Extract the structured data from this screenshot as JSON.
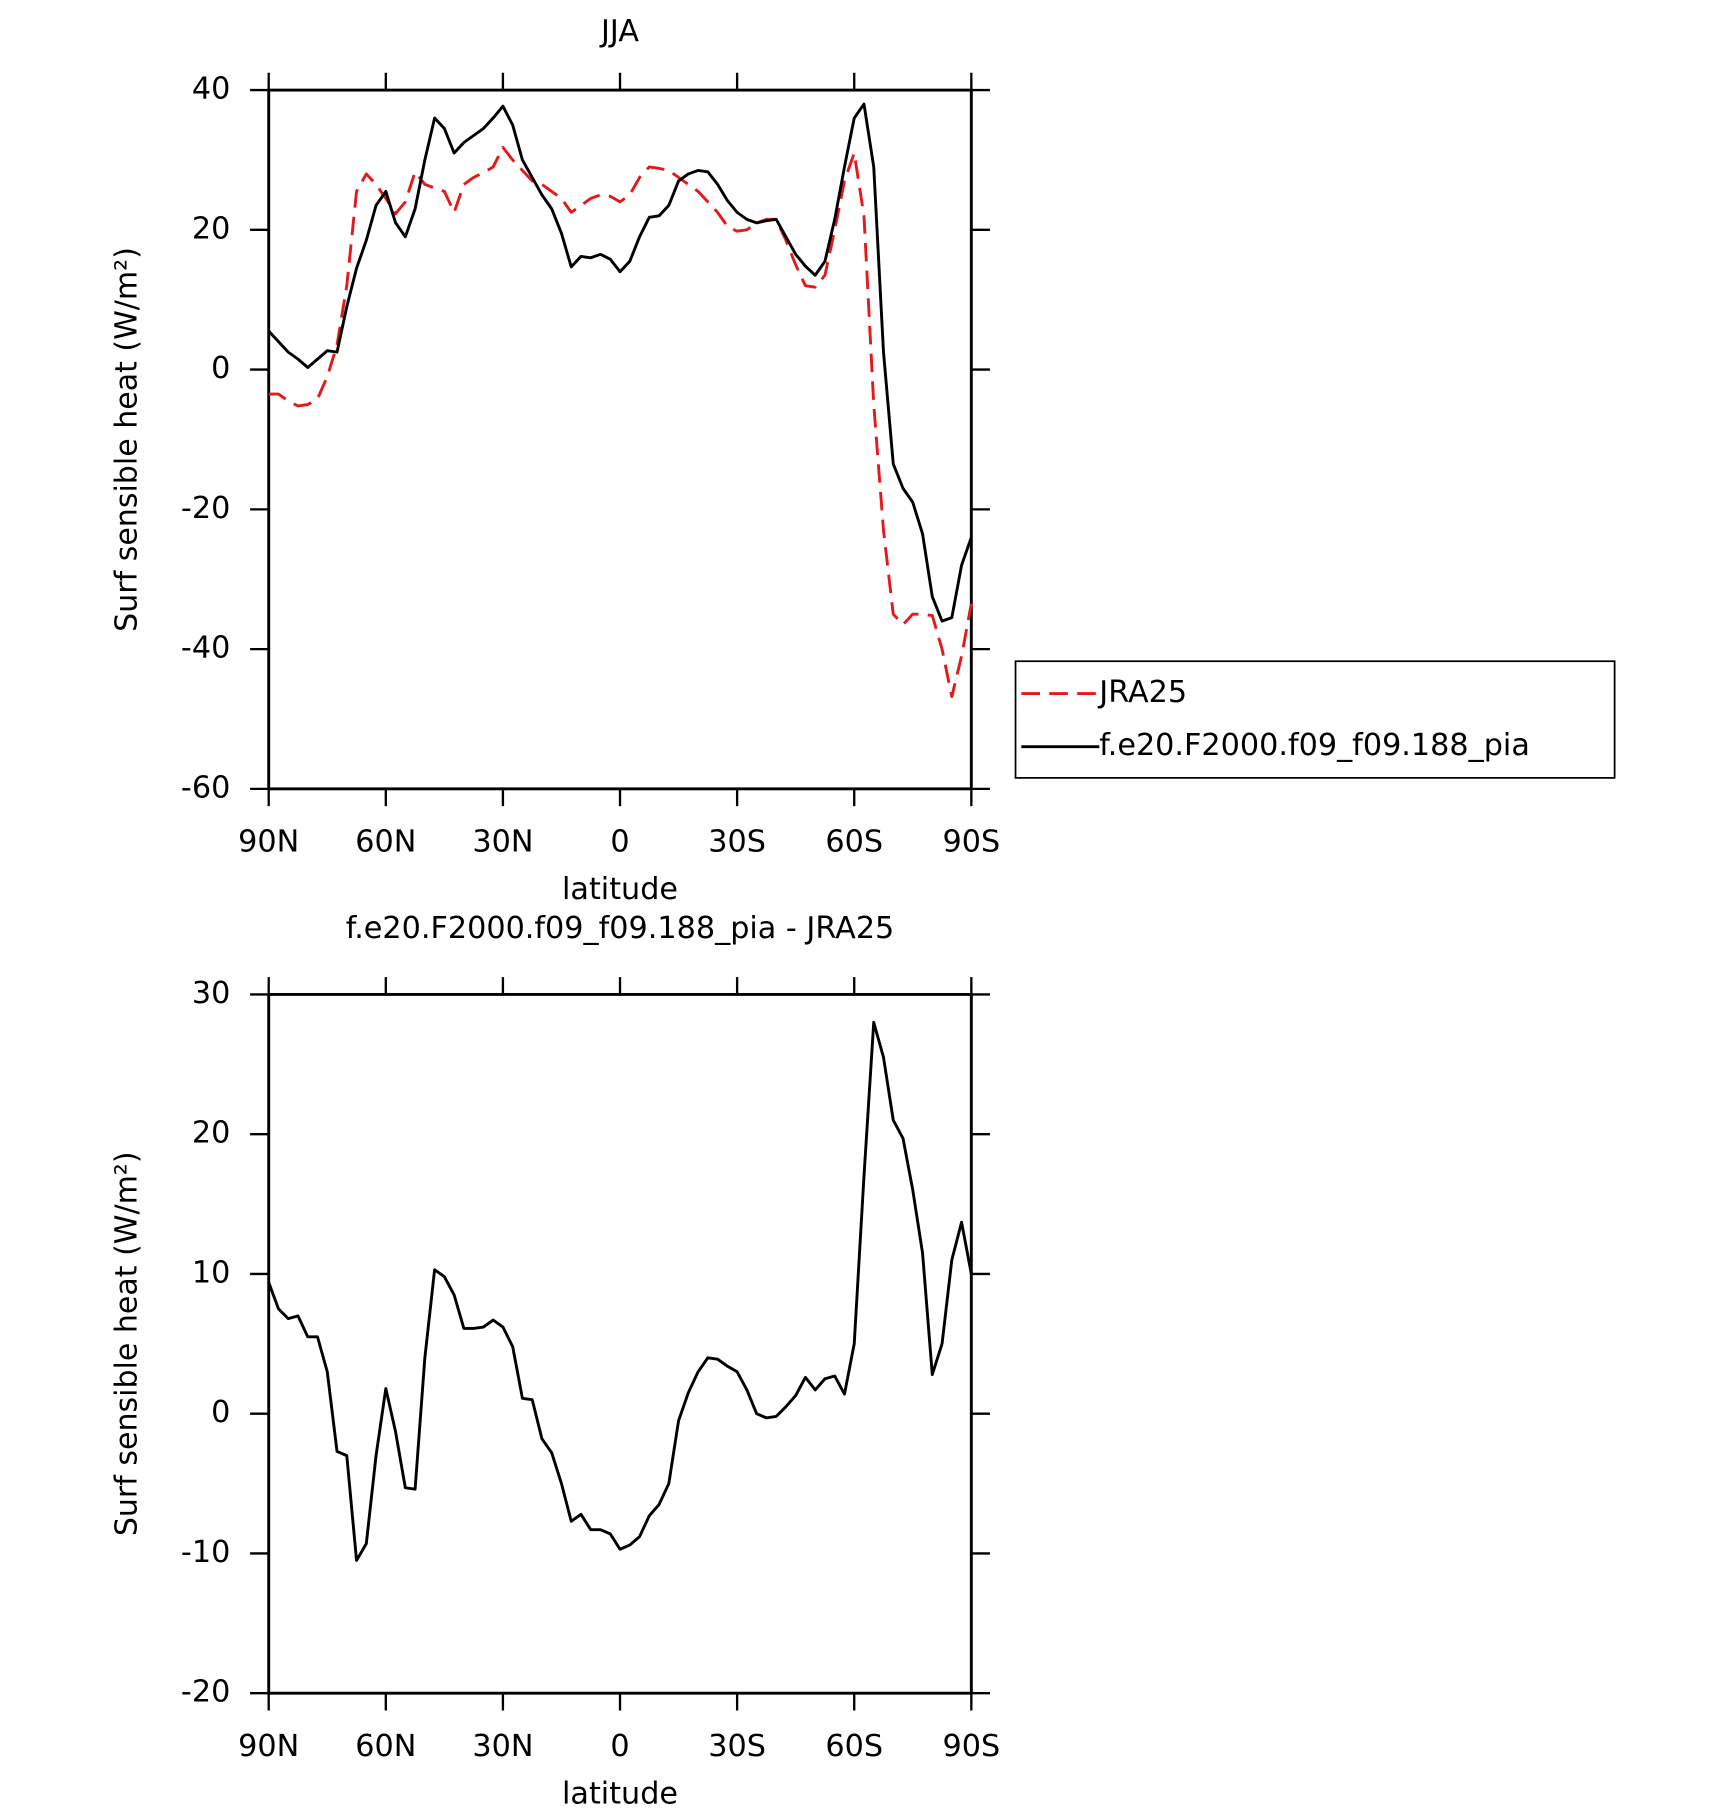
{
  "chart_data": [
    {
      "type": "line",
      "title": "JJA",
      "xlabel": "latitude",
      "ylabel": "Surf sensible heat (W/m²)",
      "x": [
        90,
        87.5,
        85,
        82.5,
        80,
        77.5,
        75,
        72.5,
        70,
        67.5,
        65,
        62.5,
        60,
        57.5,
        55,
        52.5,
        50,
        47.5,
        45,
        42.5,
        40,
        37.5,
        35,
        32.5,
        30,
        27.5,
        25,
        22.5,
        20,
        17.5,
        15,
        12.5,
        10,
        7.5,
        5,
        2.5,
        0,
        -2.5,
        -5,
        -7.5,
        -10,
        -12.5,
        -15,
        -17.5,
        -20,
        -22.5,
        -25,
        -27.5,
        -30,
        -32.5,
        -35,
        -37.5,
        -40,
        -42.5,
        -45,
        -47.5,
        -50,
        -52.5,
        -55,
        -57.5,
        -60,
        -62.5,
        -65,
        -67.5,
        -70,
        -72.5,
        -75,
        -77.5,
        -80,
        -82.5,
        -85,
        -87.5,
        -90
      ],
      "series": [
        {
          "name": "JRA25",
          "color": "#e31a1c",
          "dashed": true,
          "values": [
            -3.5,
            -3.5,
            -4.5,
            -5.2,
            -5,
            -4.2,
            -1,
            3.5,
            12,
            25.5,
            28,
            26.5,
            24.5,
            22.3,
            24,
            28.3,
            26.5,
            26,
            25.5,
            22.5,
            26.5,
            27.5,
            28.2,
            29,
            31.8,
            30,
            28.5,
            27,
            26.5,
            25.5,
            24.5,
            22.5,
            23.5,
            24.5,
            25,
            24.8,
            24,
            25,
            27.5,
            29,
            28.8,
            28.5,
            27.5,
            26.5,
            25.5,
            24,
            22.5,
            20.5,
            19.8,
            20,
            21,
            21.5,
            21.5,
            18.5,
            15,
            12,
            11.8,
            13.5,
            20,
            27,
            31,
            22,
            -5,
            -23,
            -35,
            -36.5,
            -35,
            -35,
            -35.2,
            -40,
            -46.8,
            -41,
            -33.5
          ]
        },
        {
          "name": "f.e20.F2000.f09_f09.188_pia",
          "color": "#000000",
          "dashed": false,
          "values": [
            5.5,
            4,
            2.5,
            1.5,
            0.3,
            1.5,
            2.7,
            2.5,
            9,
            14.5,
            18.5,
            23.5,
            25.5,
            21,
            19,
            23,
            30,
            36,
            34.5,
            31,
            32.5,
            33.5,
            34.5,
            36,
            37.7,
            35,
            30,
            27.5,
            25,
            23,
            19.5,
            14.7,
            16.2,
            16,
            16.5,
            15.8,
            14,
            15.5,
            19,
            21.8,
            22,
            23.5,
            27,
            28,
            28.5,
            28.3,
            26.5,
            24.2,
            22.5,
            21.5,
            21,
            21.3,
            21.5,
            19,
            16.5,
            14.8,
            13.5,
            15.5,
            21.5,
            29,
            36,
            38,
            29,
            2.5,
            -13.5,
            -17,
            -19,
            -23.5,
            -32.5,
            -36,
            -35.5,
            -28,
            -24
          ]
        }
      ],
      "xlim": [
        90,
        -90
      ],
      "xticks": [
        {
          "value": 90,
          "label": "90N"
        },
        {
          "value": 60,
          "label": "60N"
        },
        {
          "value": 30,
          "label": "30N"
        },
        0,
        {
          "value": -30,
          "label": "30S"
        },
        {
          "value": -60,
          "label": "60S"
        },
        {
          "value": -90,
          "label": "90S"
        }
      ],
      "ylim": [
        -60,
        40
      ],
      "yticks": [
        -60,
        -40,
        -20,
        0,
        20,
        40
      ],
      "legend": "right"
    },
    {
      "type": "line",
      "title": "f.e20.F2000.f09_f09.188_pia - JRA25",
      "xlabel": "latitude",
      "ylabel": "Surf sensible heat (W/m²)",
      "x": [
        90,
        87.5,
        85,
        82.5,
        80,
        77.5,
        75,
        72.5,
        70,
        67.5,
        65,
        62.5,
        60,
        57.5,
        55,
        52.5,
        50,
        47.5,
        45,
        42.5,
        40,
        37.5,
        35,
        32.5,
        30,
        27.5,
        25,
        22.5,
        20,
        17.5,
        15,
        12.5,
        10,
        7.5,
        5,
        2.5,
        0,
        -2.5,
        -5,
        -7.5,
        -10,
        -12.5,
        -15,
        -17.5,
        -20,
        -22.5,
        -25,
        -27.5,
        -30,
        -32.5,
        -35,
        -37.5,
        -40,
        -42.5,
        -45,
        -47.5,
        -50,
        -52.5,
        -55,
        -57.5,
        -60,
        -62.5,
        -65,
        -67.5,
        -70,
        -72.5,
        -75,
        -77.5,
        -80,
        -82.5,
        -85,
        -87.5,
        -90
      ],
      "values": [
        9.4,
        7.5,
        6.8,
        7,
        5.5,
        5.5,
        3,
        -2.7,
        -3,
        -10.5,
        -9.3,
        -3,
        1.8,
        -1.3,
        -5.3,
        -5.4,
        4,
        10.3,
        9.8,
        8.5,
        6.1,
        6.1,
        6.2,
        6.7,
        6.2,
        4.8,
        1.1,
        1,
        -1.8,
        -2.8,
        -5,
        -7.7,
        -7.2,
        -8.3,
        -8.3,
        -8.6,
        -9.7,
        -9.4,
        -8.8,
        -7.3,
        -6.5,
        -5,
        -0.5,
        1.5,
        3,
        4,
        3.9,
        3.4,
        3,
        1.7,
        0,
        -0.3,
        -0.2,
        0.5,
        1.3,
        2.6,
        1.7,
        2.5,
        2.7,
        1.4,
        5,
        17,
        28,
        25.5,
        21,
        19.7,
        16,
        11.5,
        2.8,
        5,
        11,
        13.7,
        10
      ],
      "color": "#000000",
      "xlim": [
        90,
        -90
      ],
      "xticks": [
        {
          "value": 90,
          "label": "90N"
        },
        {
          "value": 60,
          "label": "60N"
        },
        {
          "value": 30,
          "label": "30N"
        },
        0,
        {
          "value": -30,
          "label": "30S"
        },
        {
          "value": -60,
          "label": "60S"
        },
        {
          "value": -90,
          "label": "90S"
        }
      ],
      "ylim": [
        -20,
        30
      ],
      "yticks": [
        -20,
        -10,
        0,
        10,
        20,
        30
      ]
    }
  ]
}
